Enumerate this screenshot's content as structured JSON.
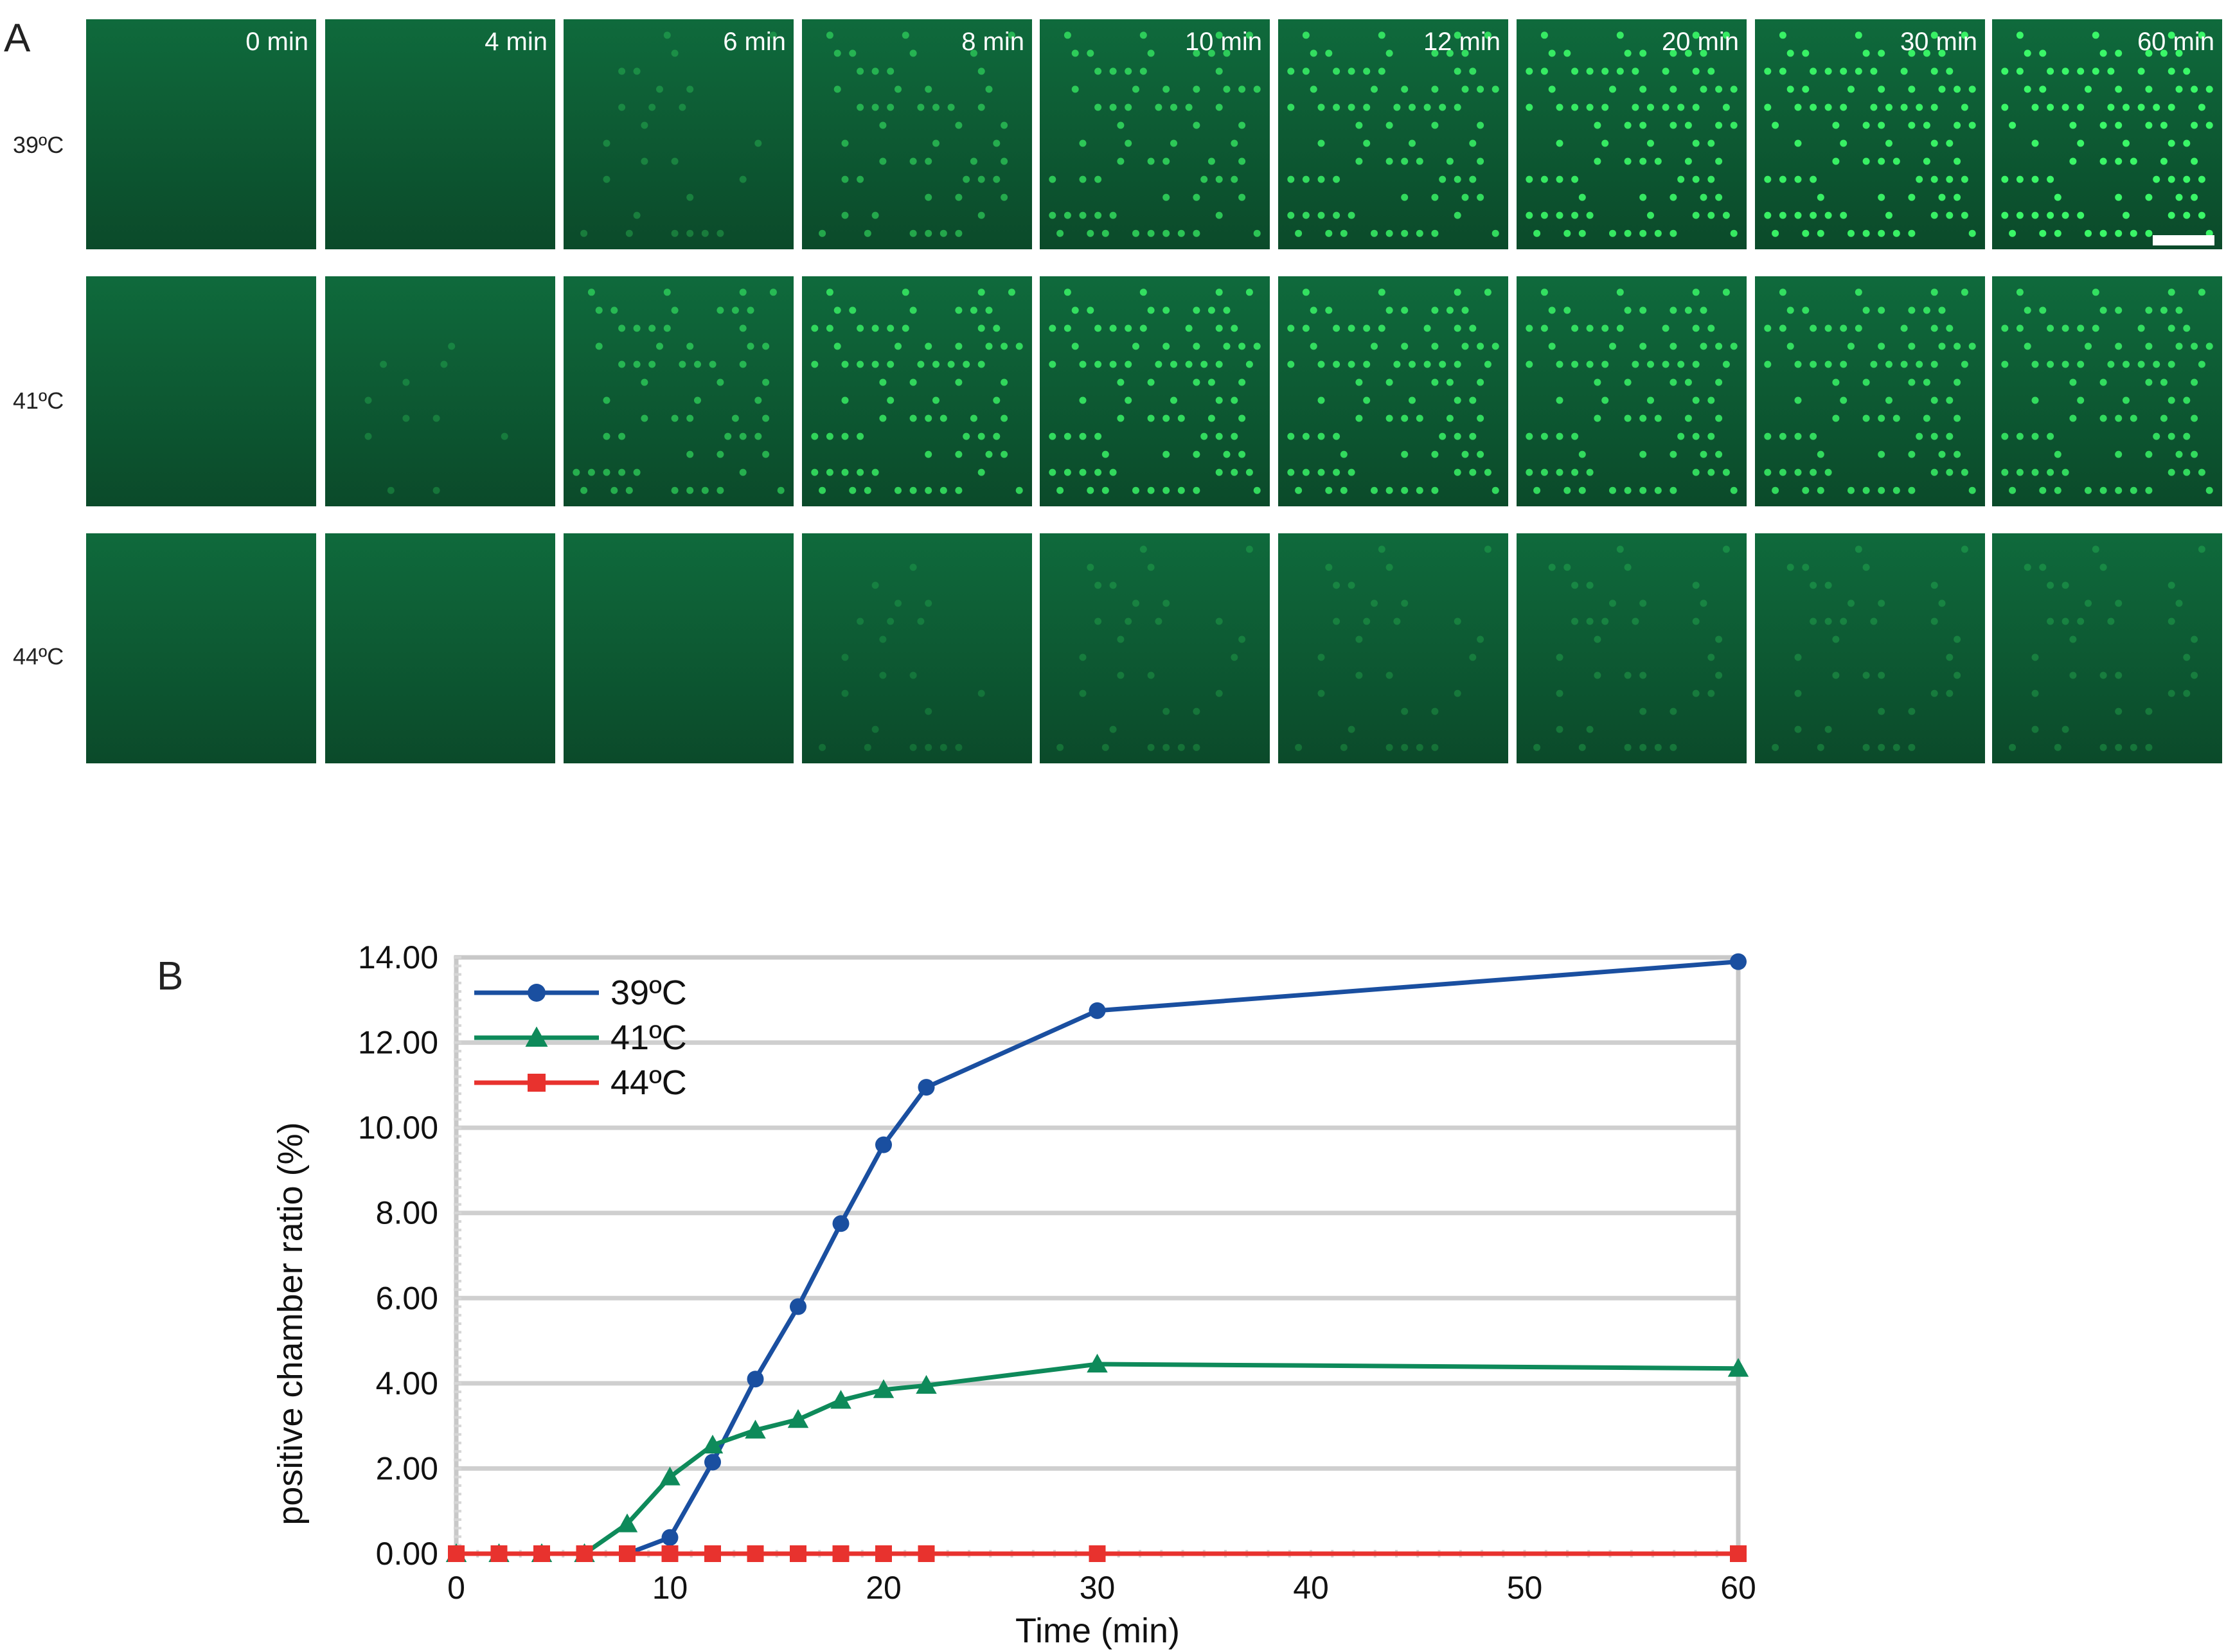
{
  "panel_a": {
    "label": "A",
    "time_labels": [
      "0 min",
      "4 min",
      "6 min",
      "8 min",
      "10 min",
      "12 min",
      "20 min",
      "30 min",
      "60 min"
    ],
    "rows": [
      {
        "label": "39ºC",
        "spot_brightness": [
          0,
          0,
          0.15,
          0.45,
          0.65,
          0.8,
          0.9,
          0.95,
          1.0
        ],
        "spot_density": [
          0,
          0,
          0.35,
          0.6,
          0.75,
          0.85,
          0.95,
          1.0,
          1.0
        ]
      },
      {
        "label": "41ºC",
        "spot_brightness": [
          0,
          0.1,
          0.5,
          0.75,
          0.8,
          0.8,
          0.8,
          0.8,
          0.8
        ],
        "spot_density": [
          0,
          0.2,
          0.7,
          0.85,
          0.9,
          0.9,
          0.9,
          0.9,
          0.9
        ]
      },
      {
        "label": "44ºC",
        "spot_brightness": [
          0,
          0,
          0,
          0.05,
          0.08,
          0.08,
          0.1,
          0.1,
          0.1
        ],
        "spot_density": [
          0,
          0,
          0,
          0.3,
          0.4,
          0.4,
          0.5,
          0.5,
          0.5
        ]
      }
    ],
    "colors": {
      "tile_dark": "#0b4a2a",
      "tile_mid": "#0f6a3c",
      "spot": "#3dff6a"
    }
  },
  "chart_data": {
    "type": "line",
    "panel_label": "B",
    "xlabel": "Time (min)",
    "ylabel": "positive chamber ratio (%)",
    "xlim": [
      0,
      60
    ],
    "ylim": [
      0,
      14
    ],
    "xticks": [
      "0",
      "10",
      "20",
      "30",
      "40",
      "50",
      "60"
    ],
    "yticks": [
      "0.00",
      "2.00",
      "4.00",
      "6.00",
      "8.00",
      "10.00",
      "12.00",
      "14.00"
    ],
    "grid": "horizontal",
    "legend": "top-left",
    "series": [
      {
        "name": "39ºC",
        "color": "#1a4fa0",
        "marker": "circle",
        "x": [
          0,
          2,
          4,
          6,
          8,
          10,
          12,
          14,
          16,
          18,
          20,
          22,
          30,
          60
        ],
        "y": [
          0,
          0,
          0,
          0,
          0,
          0.38,
          2.15,
          4.1,
          5.8,
          7.75,
          9.6,
          10.95,
          12.75,
          13.9
        ]
      },
      {
        "name": "41ºC",
        "color": "#0e8a5a",
        "marker": "triangle",
        "x": [
          0,
          2,
          4,
          6,
          8,
          10,
          12,
          14,
          16,
          18,
          20,
          22,
          30,
          60
        ],
        "y": [
          0,
          0,
          0,
          0,
          0.7,
          1.8,
          2.55,
          2.9,
          3.15,
          3.6,
          3.85,
          3.95,
          4.45,
          4.35
        ]
      },
      {
        "name": "44ºC",
        "color": "#e8322e",
        "marker": "square",
        "x": [
          0,
          2,
          4,
          6,
          8,
          10,
          12,
          14,
          16,
          18,
          20,
          22,
          30,
          60
        ],
        "y": [
          0,
          0,
          0,
          0,
          0,
          0,
          0,
          0,
          0,
          0,
          0,
          0,
          0,
          0
        ]
      }
    ]
  }
}
